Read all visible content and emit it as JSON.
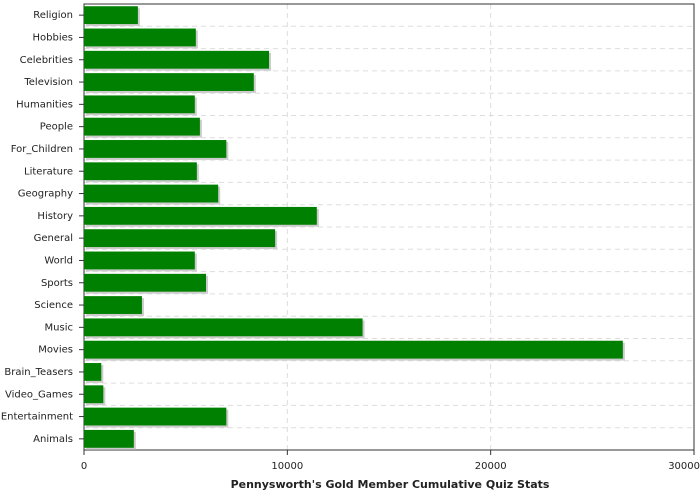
{
  "chart_data": {
    "type": "hbar",
    "xlabel": "Pennysworth's Gold Member Cumulative Quiz Stats",
    "categories": [
      "Religion",
      "Hobbies",
      "Celebrities",
      "Television",
      "Humanities",
      "People",
      "For_Children",
      "Literature",
      "Geography",
      "History",
      "General",
      "World",
      "Sports",
      "Science",
      "Music",
      "Movies",
      "Brain_Teasers",
      "Video_Games",
      "Entertainment",
      "Animals"
    ],
    "values": [
      2650,
      5500,
      9100,
      8350,
      5450,
      5700,
      7000,
      5550,
      6600,
      11450,
      9400,
      5450,
      6000,
      2850,
      13700,
      26500,
      850,
      950,
      7000,
      2450
    ],
    "color": "#008000",
    "xlim": [
      0,
      30000
    ],
    "xticks": [
      0,
      10000,
      20000,
      30000
    ],
    "grid": true
  }
}
